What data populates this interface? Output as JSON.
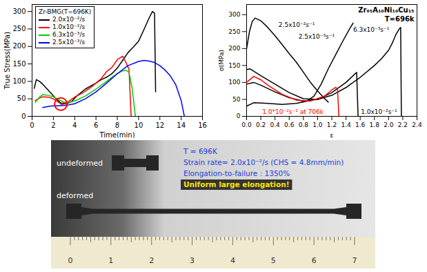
{
  "chart_data": [
    {
      "type": "line",
      "title": "Zr-BMG(T=696K)",
      "xlabel": "Time(min)",
      "ylabel": "True Stress(MPa)",
      "xlim": [
        0,
        16
      ],
      "xticks": [
        0,
        2,
        4,
        6,
        8,
        10,
        12,
        14,
        16
      ],
      "ylim": [
        0,
        320
      ],
      "yticks": [
        0,
        50,
        100,
        150,
        200,
        250,
        300
      ],
      "grid": false,
      "legend": "top-left",
      "series": [
        {
          "name": "2.0x10⁻²/s",
          "color": "#000000",
          "x": [
            0.2,
            0.4,
            0.7,
            1.0,
            1.6,
            2.2,
            2.7,
            3.2,
            3.7,
            4.2,
            5.0,
            6.0,
            6.5,
            7.0,
            7.5,
            8.0,
            8.5,
            9.0,
            9.5,
            10.0,
            10.5,
            11.0,
            11.3,
            11.5,
            11.6
          ],
          "values": [
            80,
            105,
            100,
            92,
            72,
            52,
            38,
            36,
            42,
            58,
            78,
            95,
            105,
            112,
            122,
            138,
            160,
            182,
            198,
            215,
            248,
            282,
            300,
            295,
            70
          ]
        },
        {
          "name": "1.0x10⁻²/s",
          "color": "#ff0000",
          "x": [
            0.3,
            0.7,
            1.0,
            1.5,
            2.0,
            2.5,
            2.8,
            3.2,
            4.0,
            4.8,
            5.5,
            6.0,
            6.5,
            7.0,
            7.5,
            8.0,
            8.5,
            8.8,
            9.1,
            9.3
          ],
          "values": [
            45,
            52,
            56,
            55,
            50,
            40,
            33,
            38,
            55,
            68,
            82,
            95,
            108,
            128,
            140,
            162,
            172,
            155,
            135,
            0
          ]
        },
        {
          "name": "6.3x10⁻³/s",
          "color": "#00cc00",
          "x": [
            0.3,
            0.7,
            1.0,
            1.5,
            2.0,
            2.5,
            3.0,
            3.5,
            4.0,
            5.0,
            6.0,
            7.0,
            7.5,
            8.0,
            8.5,
            8.8,
            9.1,
            9.4,
            9.7
          ],
          "values": [
            40,
            55,
            62,
            60,
            56,
            48,
            40,
            40,
            44,
            58,
            78,
            100,
            112,
            122,
            130,
            132,
            126,
            80,
            0
          ]
        },
        {
          "name": "2.5x10⁻³/s",
          "color": "#0000ff",
          "x": [
            1.0,
            1.5,
            2.0,
            2.5,
            3.0,
            3.5,
            4.0,
            5.0,
            6.0,
            7.0,
            8.0,
            9.0,
            10.0,
            10.5,
            11.0,
            11.5,
            12.0,
            12.5,
            13.0,
            13.5,
            14.0,
            14.3
          ],
          "values": [
            25,
            28,
            30,
            30,
            31,
            33,
            36,
            50,
            70,
            95,
            122,
            145,
            157,
            160,
            158,
            154,
            145,
            132,
            115,
            90,
            45,
            0
          ]
        }
      ],
      "annotations": [
        {
          "marker": "circle",
          "x": 2.7,
          "y": 35,
          "color": "#ff0000"
        }
      ]
    },
    {
      "type": "line",
      "title": "Zr₆₅A₁₀Ni₁₀Cu₁₅",
      "subtitle": "T=696k",
      "xlabel": "ε",
      "ylabel": "σ(MPa)",
      "xlim": [
        0,
        2.4
      ],
      "xticks": [
        {
          "value": 0,
          "label": "0.0"
        },
        0.2,
        0.4,
        0.6,
        0.8,
        {
          "value": 1,
          "label": "1.0"
        },
        1.2,
        1.4,
        1.6,
        1.8,
        {
          "value": 2,
          "label": "2.0"
        },
        2.2,
        2.4
      ],
      "ylim": [
        0,
        330
      ],
      "yticks": [
        0,
        50,
        100,
        150,
        200,
        250,
        300
      ],
      "grid": false,
      "series": [
        {
          "name": "2.5x10⁻²s⁻¹",
          "color": "#000000",
          "label_x": 0.45,
          "label_y": 270,
          "x": [
            0,
            0.04,
            0.08,
            0.12,
            0.2,
            0.3,
            0.4,
            0.5,
            0.6,
            0.7,
            0.8,
            0.9,
            1.0,
            1.1,
            1.15
          ],
          "values": [
            200,
            250,
            280,
            290,
            282,
            262,
            238,
            212,
            185,
            160,
            130,
            100,
            75,
            52,
            42
          ]
        },
        {
          "name": "2.5x10⁻³s⁻¹",
          "color": "#000000",
          "label_x": 0.73,
          "label_y": 235,
          "x": [
            0,
            0.1,
            0.3,
            0.5,
            0.7,
            0.85,
            0.95,
            1.05,
            1.15,
            1.25,
            1.35,
            1.45,
            1.5
          ],
          "values": [
            30,
            40,
            38,
            35,
            38,
            45,
            60,
            95,
            140,
            180,
            220,
            258,
            275
          ]
        },
        {
          "name": "6.3x10⁻³s⁻¹",
          "color": "#000000",
          "label_x": 1.5,
          "label_y": 255,
          "x": [
            0,
            0.05,
            0.2,
            0.4,
            0.6,
            0.8,
            1.0,
            1.2,
            1.4,
            1.6,
            1.8,
            1.9,
            2.0,
            2.05,
            2.1,
            2.15,
            2.17,
            2.18
          ],
          "values": [
            138,
            140,
            120,
            95,
            70,
            52,
            50,
            62,
            85,
            115,
            150,
            170,
            195,
            215,
            240,
            258,
            262,
            0
          ]
        },
        {
          "name": "1.0x10⁻²s⁻¹",
          "color": "#000000",
          "label_x": 1.61,
          "label_y": 12,
          "x": [
            0,
            0.1,
            0.2,
            0.4,
            0.6,
            0.8,
            1.0,
            1.2,
            1.4,
            1.5,
            1.55,
            1.57
          ],
          "values": [
            95,
            100,
            92,
            72,
            55,
            45,
            50,
            70,
            100,
            120,
            130,
            0
          ]
        },
        {
          "name": "1.0*10⁻²s⁻¹ at 706k",
          "color": "#ff0000",
          "label_x": 0.22,
          "label_y": 12,
          "x": [
            0,
            0.1,
            0.2,
            0.3,
            0.5,
            0.7,
            0.9,
            1.1,
            1.2,
            1.25,
            1.28,
            1.3
          ],
          "values": [
            100,
            118,
            108,
            92,
            65,
            48,
            45,
            60,
            78,
            85,
            82,
            0
          ]
        }
      ]
    }
  ],
  "photo": {
    "labels": [
      "undeformed",
      "deformed"
    ],
    "notes": [
      "T = 696K",
      "Strain rate= 2.0x10⁻²/s (CHS = 4.8mm/min)",
      "Elongation-to-failure : 1350%",
      "Uniform large elongation!"
    ],
    "ruler_ticks": [
      0,
      1,
      2,
      3,
      4,
      5,
      6,
      7
    ]
  }
}
